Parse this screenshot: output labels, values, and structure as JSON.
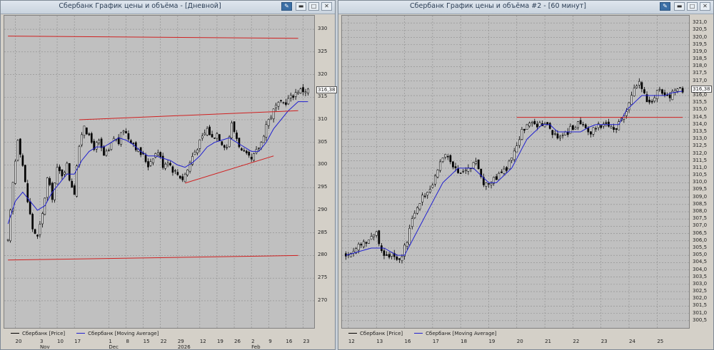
{
  "left": {
    "title": "Сбербанк График цены и объёма - [Дневной]",
    "legend": [
      {
        "label": "Сбербанк [Price]",
        "color": "#000000"
      },
      {
        "label": "Сбербанк [Moving Average]",
        "color": "#2020d0"
      }
    ],
    "last_price_label": "316,38"
  },
  "right": {
    "title": "Сбербанк График цены и объёма #2 - [60 минут]",
    "legend": [
      {
        "label": "Сбербанк [Price]",
        "color": "#000000"
      },
      {
        "label": "Сбербанк [Moving Average]",
        "color": "#2020d0"
      }
    ],
    "last_price_label": "316,38"
  },
  "colors": {
    "candle": "#000000",
    "ma": "#2020d0",
    "trendline": "#d02020",
    "grid": "#8c8c8c",
    "plot_bg": "#c0c0c0"
  },
  "chart_data": [
    {
      "type": "candlestick",
      "title": "Сбербанк График цены и объёма - [Дневной]",
      "ylim": [
        264,
        333
      ],
      "y_ticks": [
        270,
        275,
        280,
        285,
        290,
        295,
        300,
        305,
        310,
        315,
        320,
        325,
        330
      ],
      "x_ticks": [
        "20",
        "3",
        "10",
        "17",
        "1",
        "8",
        "15",
        "22",
        "29",
        "12",
        "19",
        "26",
        "2",
        "9",
        "16",
        "23"
      ],
      "x_tick_index": [
        3,
        13,
        20,
        27,
        41,
        48,
        55,
        62,
        69,
        78,
        85,
        92,
        99,
        106,
        113,
        120
      ],
      "month_labels": [
        {
          "label": "Nov",
          "index": 13
        },
        {
          "label": "Dec",
          "index": 41
        },
        {
          "label": "2026",
          "index": 69
        },
        {
          "label": "Feb",
          "index": 99
        }
      ],
      "n_bars": 123,
      "series": [
        {
          "name": "Сбербанк [Price]",
          "close_anchors": [
            [
              0,
              283
            ],
            [
              2,
              296
            ],
            [
              4,
              306
            ],
            [
              6,
              300
            ],
            [
              8,
              292
            ],
            [
              10,
              286
            ],
            [
              12,
              284
            ],
            [
              14,
              289
            ],
            [
              16,
              297
            ],
            [
              18,
              293
            ],
            [
              20,
              299
            ],
            [
              22,
              298
            ],
            [
              24,
              300
            ],
            [
              25,
              297
            ],
            [
              27,
              294
            ],
            [
              28,
              300
            ],
            [
              30,
              307
            ],
            [
              31,
              309
            ],
            [
              33,
              306
            ],
            [
              35,
              304
            ],
            [
              37,
              305
            ],
            [
              39,
              302
            ],
            [
              41,
              303
            ],
            [
              43,
              306
            ],
            [
              45,
              305
            ],
            [
              47,
              308
            ],
            [
              49,
              306
            ],
            [
              51,
              305
            ],
            [
              53,
              303
            ],
            [
              55,
              302
            ],
            [
              57,
              300
            ],
            [
              59,
              302
            ],
            [
              61,
              303
            ],
            [
              63,
              300
            ],
            [
              65,
              301
            ],
            [
              67,
              299
            ],
            [
              69,
              298
            ],
            [
              71,
              297
            ],
            [
              73,
              299
            ],
            [
              75,
              302
            ],
            [
              77,
              304
            ],
            [
              79,
              306
            ],
            [
              81,
              308
            ],
            [
              83,
              306
            ],
            [
              85,
              307
            ],
            [
              87,
              305
            ],
            [
              89,
              304
            ],
            [
              91,
              309
            ],
            [
              93,
              306
            ],
            [
              95,
              303
            ],
            [
              97,
              302
            ],
            [
              99,
              301
            ],
            [
              101,
              303
            ],
            [
              103,
              305
            ],
            [
              105,
              309
            ],
            [
              107,
              311
            ],
            [
              109,
              313
            ],
            [
              111,
              313.5
            ],
            [
              113,
              314
            ],
            [
              115,
              315
            ],
            [
              117,
              316
            ],
            [
              118,
              316.5
            ]
          ]
        },
        {
          "name": "Сбербанк [Moving Average]",
          "anchors": [
            [
              0,
              287
            ],
            [
              3,
              292
            ],
            [
              6,
              294
            ],
            [
              9,
              292
            ],
            [
              12,
              290
            ],
            [
              15,
              291
            ],
            [
              18,
              294
            ],
            [
              21,
              296
            ],
            [
              24,
              298
            ],
            [
              27,
              298
            ],
            [
              30,
              301
            ],
            [
              33,
              303
            ],
            [
              36,
              304
            ],
            [
              39,
              304
            ],
            [
              42,
              305
            ],
            [
              45,
              306
            ],
            [
              48,
              305.5
            ],
            [
              51,
              304.5
            ],
            [
              54,
              303
            ],
            [
              57,
              302
            ],
            [
              60,
              302
            ],
            [
              63,
              301.5
            ],
            [
              66,
              301
            ],
            [
              69,
              300
            ],
            [
              72,
              299.5
            ],
            [
              75,
              300.5
            ],
            [
              78,
              302
            ],
            [
              81,
              304
            ],
            [
              84,
              305
            ],
            [
              87,
              305.5
            ],
            [
              90,
              306
            ],
            [
              93,
              305
            ],
            [
              96,
              304
            ],
            [
              99,
              303
            ],
            [
              102,
              303
            ],
            [
              105,
              305
            ],
            [
              108,
              308
            ],
            [
              111,
              310
            ],
            [
              114,
              312
            ],
            [
              117,
              313.5
            ],
            [
              118,
              314
            ]
          ]
        }
      ],
      "trendlines": [
        {
          "from": [
            0,
            279
          ],
          "to": [
            118,
            280
          ]
        },
        {
          "from": [
            0,
            328.5
          ],
          "to": [
            118,
            328
          ]
        },
        {
          "from": [
            29,
            310
          ],
          "to": [
            118,
            312
          ]
        },
        {
          "from": [
            72,
            296
          ],
          "to": [
            108,
            302
          ]
        }
      ]
    },
    {
      "type": "candlestick",
      "title": "Сбербанк График цены и объёма #2 - [60 минут]",
      "ylim": [
        300,
        321.5
      ],
      "y_ticks": [
        300.5,
        301.0,
        301.5,
        302.0,
        302.5,
        303.0,
        303.5,
        304.0,
        304.5,
        305.0,
        305.5,
        306.0,
        306.5,
        307.0,
        307.5,
        308.0,
        308.5,
        309.0,
        309.5,
        310.0,
        310.5,
        311.0,
        311.5,
        312.0,
        312.5,
        313.0,
        313.5,
        314.0,
        314.5,
        315.0,
        315.5,
        316.0,
        316.5,
        317.0,
        317.5,
        318.0,
        318.5,
        319.0,
        319.5,
        320.0,
        320.5,
        321.0
      ],
      "x_ticks": [
        "12",
        "13",
        "16",
        "17",
        "18",
        "19",
        "20",
        "21",
        "22",
        "23",
        "24",
        "25"
      ],
      "x_tick_index": [
        1,
        12,
        23,
        34,
        45,
        56,
        67,
        78,
        89,
        100,
        111,
        122
      ],
      "n_bars": 133,
      "series": [
        {
          "name": "Сбербанк [Price]",
          "close_anchors": [
            [
              0,
              305
            ],
            [
              4,
              305.5
            ],
            [
              8,
              306
            ],
            [
              12,
              306.5
            ],
            [
              15,
              305
            ],
            [
              18,
              305
            ],
            [
              21,
              304.5
            ],
            [
              24,
              306
            ],
            [
              27,
              308
            ],
            [
              30,
              309
            ],
            [
              33,
              309.5
            ],
            [
              36,
              311
            ],
            [
              39,
              312
            ],
            [
              42,
              311
            ],
            [
              45,
              310.5
            ],
            [
              48,
              311
            ],
            [
              51,
              311.5
            ],
            [
              54,
              310
            ],
            [
              57,
              310
            ],
            [
              60,
              310.5
            ],
            [
              63,
              311
            ],
            [
              66,
              312
            ],
            [
              69,
              313.5
            ],
            [
              72,
              314
            ],
            [
              75,
              314
            ],
            [
              78,
              314
            ],
            [
              81,
              313.5
            ],
            [
              84,
              313
            ],
            [
              87,
              313.5
            ],
            [
              90,
              314
            ],
            [
              93,
              314
            ],
            [
              96,
              313.5
            ],
            [
              99,
              314
            ],
            [
              102,
              314
            ],
            [
              105,
              313.5
            ],
            [
              107,
              314
            ],
            [
              109,
              314.5
            ],
            [
              111,
              315.5
            ],
            [
              113,
              316.5
            ],
            [
              115,
              317
            ],
            [
              117,
              316
            ],
            [
              119,
              315.5
            ],
            [
              121,
              316
            ],
            [
              123,
              316.5
            ],
            [
              125,
              316
            ],
            [
              127,
              316
            ],
            [
              129,
              316.5
            ],
            [
              131,
              316.5
            ],
            [
              132,
              316.4
            ]
          ]
        },
        {
          "name": "Сбербанк [Moving Average]",
          "anchors": [
            [
              0,
              305
            ],
            [
              10,
              305.5
            ],
            [
              15,
              305.5
            ],
            [
              20,
              305
            ],
            [
              23,
              305
            ],
            [
              26,
              306
            ],
            [
              29,
              307
            ],
            [
              32,
              308
            ],
            [
              35,
              309
            ],
            [
              38,
              310
            ],
            [
              41,
              310.5
            ],
            [
              44,
              311
            ],
            [
              47,
              311
            ],
            [
              50,
              311
            ],
            [
              53,
              310.5
            ],
            [
              56,
              310
            ],
            [
              59,
              310
            ],
            [
              62,
              310.5
            ],
            [
              65,
              311
            ],
            [
              68,
              312
            ],
            [
              71,
              313
            ],
            [
              74,
              313.5
            ],
            [
              77,
              314
            ],
            [
              80,
              314
            ],
            [
              83,
              313.5
            ],
            [
              86,
              313.5
            ],
            [
              89,
              313.5
            ],
            [
              92,
              313.5
            ],
            [
              95,
              313.8
            ],
            [
              98,
              314
            ],
            [
              101,
              314
            ],
            [
              104,
              314
            ],
            [
              107,
              314
            ],
            [
              110,
              315
            ],
            [
              113,
              315.5
            ],
            [
              116,
              316
            ],
            [
              119,
              316
            ],
            [
              122,
              316
            ],
            [
              125,
              316
            ],
            [
              128,
              316.2
            ],
            [
              132,
              316.3
            ]
          ]
        }
      ],
      "trendlines": [
        {
          "from": [
            67,
            314.5
          ],
          "to": [
            132,
            314.5
          ]
        }
      ]
    }
  ]
}
